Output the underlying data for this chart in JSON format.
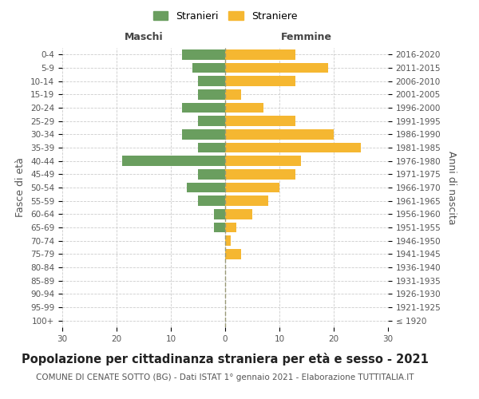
{
  "age_groups": [
    "100+",
    "95-99",
    "90-94",
    "85-89",
    "80-84",
    "75-79",
    "70-74",
    "65-69",
    "60-64",
    "55-59",
    "50-54",
    "45-49",
    "40-44",
    "35-39",
    "30-34",
    "25-29",
    "20-24",
    "15-19",
    "10-14",
    "5-9",
    "0-4"
  ],
  "birth_years": [
    "≤ 1920",
    "1921-1925",
    "1926-1930",
    "1931-1935",
    "1936-1940",
    "1941-1945",
    "1946-1950",
    "1951-1955",
    "1956-1960",
    "1961-1965",
    "1966-1970",
    "1971-1975",
    "1976-1980",
    "1981-1985",
    "1986-1990",
    "1991-1995",
    "1996-2000",
    "2001-2005",
    "2006-2010",
    "2011-2015",
    "2016-2020"
  ],
  "maschi": [
    0,
    0,
    0,
    0,
    0,
    0,
    0,
    2,
    2,
    5,
    7,
    5,
    19,
    5,
    8,
    5,
    8,
    5,
    5,
    6,
    8
  ],
  "femmine": [
    0,
    0,
    0,
    0,
    0,
    3,
    1,
    2,
    5,
    8,
    10,
    13,
    14,
    25,
    20,
    13,
    7,
    3,
    13,
    19,
    13
  ],
  "maschi_color": "#6a9e5f",
  "femmine_color": "#f5b731",
  "background_color": "#ffffff",
  "grid_color": "#cccccc",
  "title": "Popolazione per cittadinanza straniera per età e sesso - 2021",
  "subtitle": "COMUNE DI CENATE SOTTO (BG) - Dati ISTAT 1° gennaio 2021 - Elaborazione TUTTITALIA.IT",
  "xlabel_left": "Maschi",
  "xlabel_right": "Femmine",
  "ylabel_left": "Fasce di età",
  "ylabel_right": "Anni di nascita",
  "legend_stranieri": "Stranieri",
  "legend_straniere": "Straniere",
  "xlim": 30,
  "title_fontsize": 10.5,
  "subtitle_fontsize": 7.5,
  "tick_fontsize": 7.5,
  "label_fontsize": 9
}
